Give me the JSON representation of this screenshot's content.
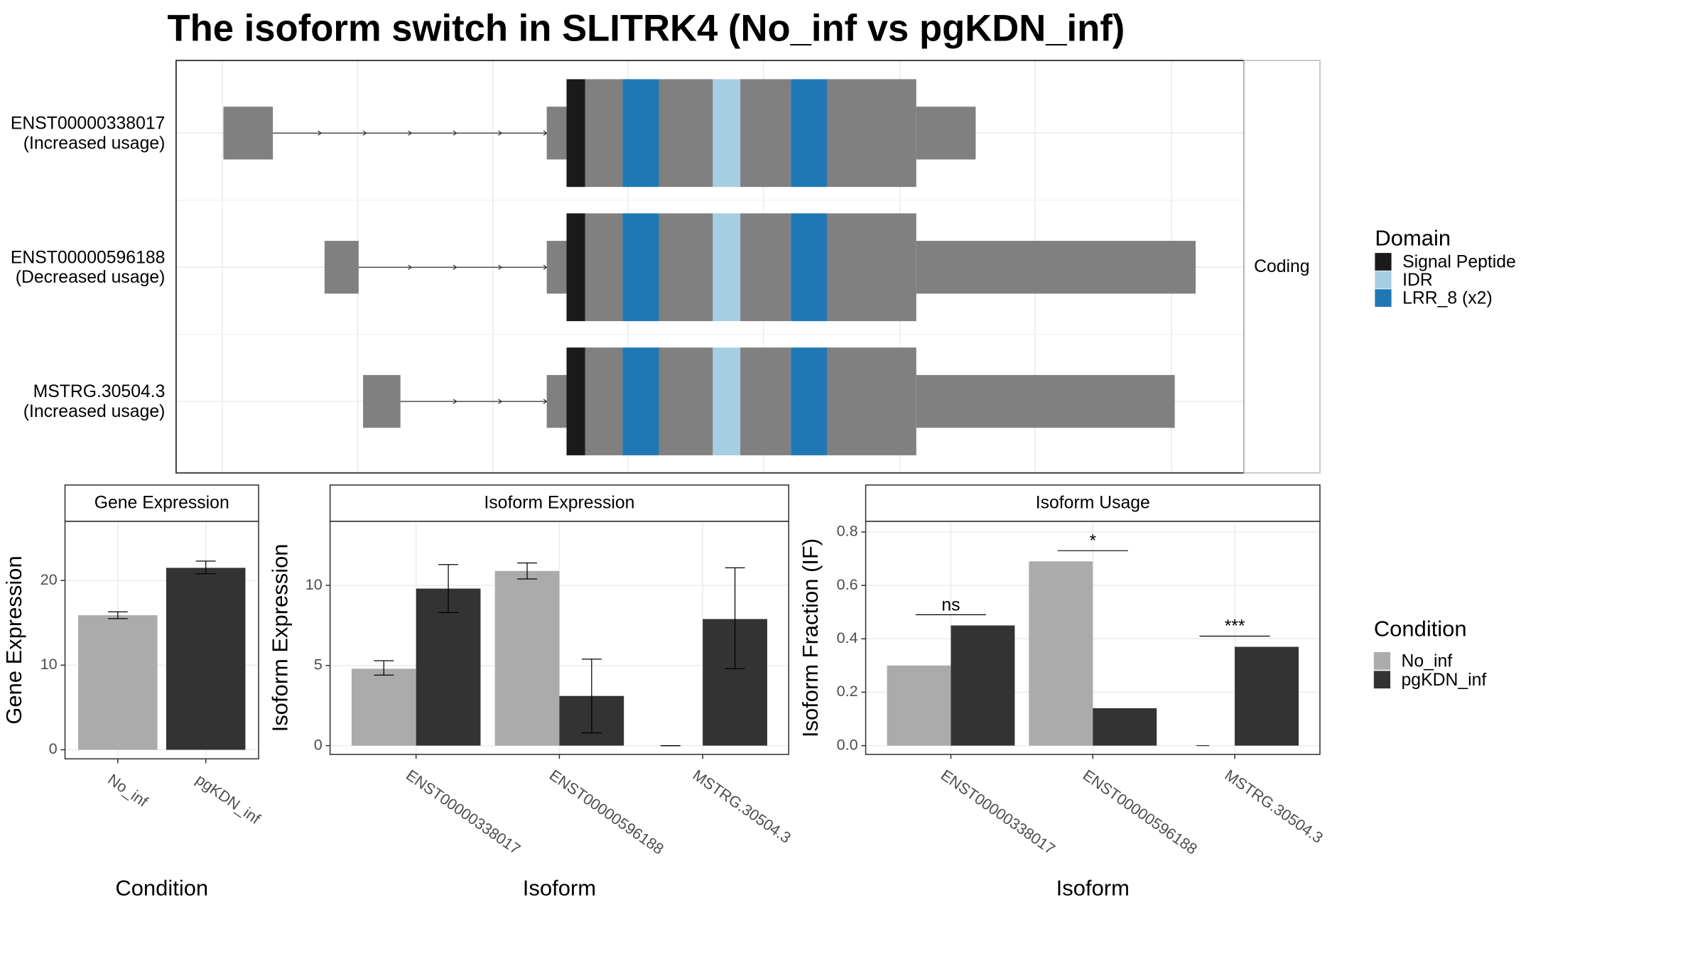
{
  "title": "The isoform switch in SLITRK4 (No_inf vs pgKDN_inf)",
  "transcript_plot": {
    "transcripts": [
      {
        "id": "ENST00000338017",
        "usage": "(Increased usage)"
      },
      {
        "id": "ENST00000596188",
        "usage": "(Decreased usage)"
      },
      {
        "id": "MSTRG.30504.3",
        "usage": "(Increased usage)"
      }
    ],
    "strip": "Coding",
    "domain_legend": {
      "title": "Domain",
      "items": [
        {
          "name": "Signal Peptide",
          "color": "#1a1a1a"
        },
        {
          "name": "IDR",
          "color": "#a6cee3"
        },
        {
          "name": "LRR_8 (x2)",
          "color": "#1f78b4"
        }
      ]
    }
  },
  "chart_data": [
    {
      "type": "bar",
      "strip": "Gene Expression",
      "x_label": "Condition",
      "y_label": "Gene Expression",
      "categories": [
        "No_inf",
        "pgKDN_inf"
      ],
      "values": [
        15.9,
        21.5
      ],
      "colors": [
        "#ababab",
        "#333333"
      ],
      "error_low": [
        15.5,
        20.8
      ],
      "error_high": [
        16.3,
        22.3
      ],
      "ylim": [
        -1.07,
        27
      ],
      "yticks": [
        0,
        10,
        20
      ],
      "grid": true
    },
    {
      "type": "grouped_bar",
      "strip": "Isoform Expression",
      "x_label": "Isoform",
      "y_label": "Isoform Expression",
      "categories": [
        "ENST00000338017",
        "ENST00000596188",
        "MSTRG.30504.3"
      ],
      "series": [
        {
          "name": "No_inf",
          "color": "#ababab",
          "values": [
            4.8,
            10.9,
            0
          ],
          "error_low": [
            4.4,
            10.4,
            0
          ],
          "error_high": [
            5.3,
            11.4,
            0
          ]
        },
        {
          "name": "pgKDN_inf",
          "color": "#333333",
          "values": [
            9.8,
            3.1,
            7.9
          ],
          "error_low": [
            8.3,
            0.8,
            4.8
          ],
          "error_high": [
            11.3,
            5.4,
            11.1
          ]
        }
      ],
      "ylim": [
        -0.55,
        14
      ],
      "yticks": [
        0,
        5,
        10
      ],
      "grid": true
    },
    {
      "type": "grouped_bar",
      "strip": "Isoform Usage",
      "x_label": "Isoform",
      "y_label": "Isoform Fraction (IF)",
      "categories": [
        "ENST00000338017",
        "ENST00000596188",
        "MSTRG.30504.3"
      ],
      "series": [
        {
          "name": "No_inf",
          "color": "#ababab",
          "values": [
            0.3,
            0.69,
            0
          ]
        },
        {
          "name": "pgKDN_inf",
          "color": "#333333",
          "values": [
            0.45,
            0.14,
            0.37
          ]
        }
      ],
      "annotations": [
        {
          "label": "ns",
          "y": 0.49
        },
        {
          "label": "*",
          "y": 0.73
        },
        {
          "label": "***",
          "y": 0.41
        }
      ],
      "legend_title": "Condition",
      "ylim": [
        -0.033,
        0.84
      ],
      "yticks": [
        {
          "value": 0,
          "label": "0.0"
        },
        {
          "value": 0.2,
          "label": "0.2"
        },
        {
          "value": 0.4,
          "label": "0.4"
        },
        {
          "value": 0.6,
          "label": "0.6"
        },
        {
          "value": 0.8,
          "label": "0.8"
        }
      ],
      "grid": true
    }
  ]
}
